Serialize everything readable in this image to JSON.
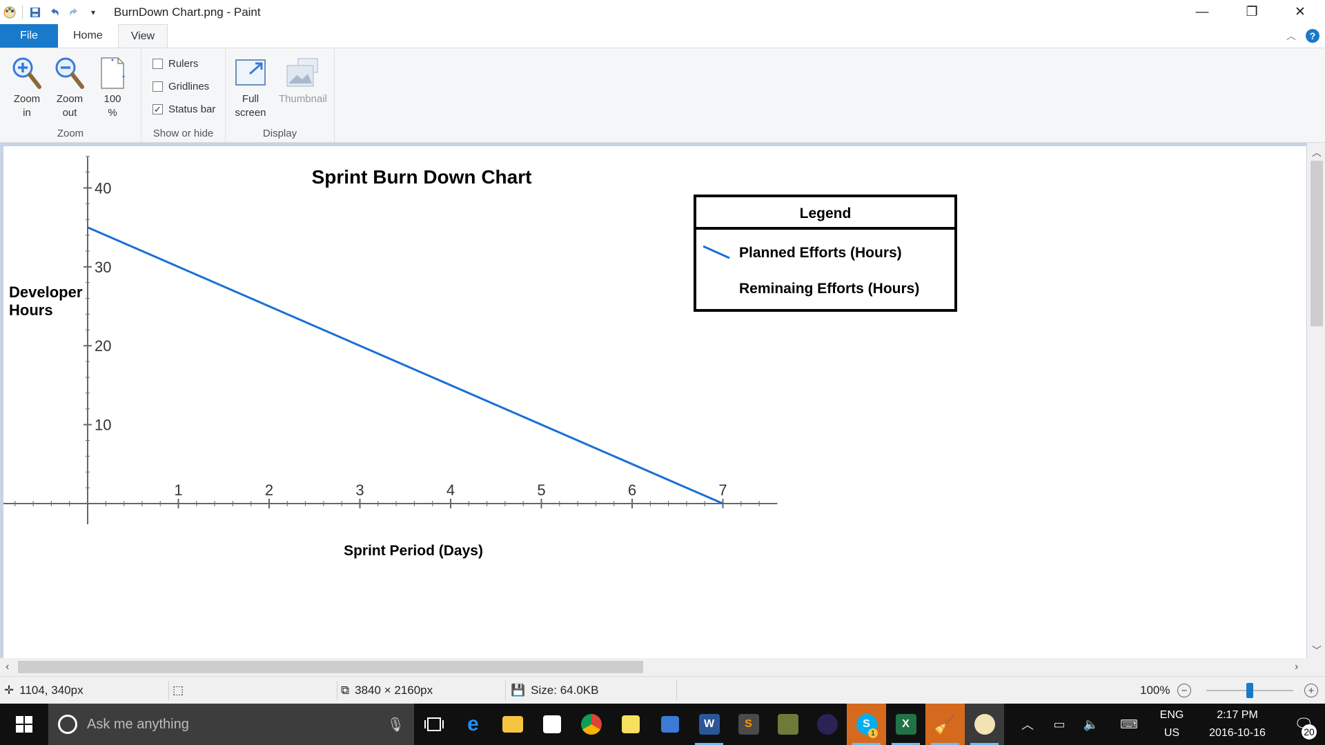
{
  "window": {
    "title": "BurnDown Chart.png - Paint",
    "minimize": "—",
    "restore": "❐",
    "close": "✕"
  },
  "tabs": [
    {
      "label": "File"
    },
    {
      "label": "Home"
    },
    {
      "label": "View"
    }
  ],
  "ribbon": {
    "zoom": {
      "zoom_in": "Zoom\nin",
      "zoom_out": "Zoom\nout",
      "hundred": "100\n%",
      "group_label": "Zoom"
    },
    "show_hide": {
      "rulers": "Rulers",
      "rulers_checked": false,
      "gridlines": "Gridlines",
      "gridlines_checked": false,
      "status_bar": "Status bar",
      "status_bar_checked": true,
      "group_label": "Show or hide"
    },
    "display": {
      "full_screen": "Full\nscreen",
      "thumbnail": "Thumbnail",
      "group_label": "Display"
    }
  },
  "image": {
    "title": "Sprint Burn Down Chart",
    "legend_title": "Legend",
    "legend_items": [
      {
        "label": "Planned Efforts (Hours)",
        "color": "#1a6fd6"
      },
      {
        "label": "Reminaing Efforts  (Hours)",
        "color": ""
      }
    ],
    "y_axis_label_line1": "Developer",
    "y_axis_label_line2": "Hours",
    "x_axis_label": "Sprint Period (Days)"
  },
  "chart_data": {
    "type": "line",
    "title": "Sprint Burn Down Chart",
    "xlabel": "Sprint Period (Days)",
    "ylabel": "Developer Hours",
    "x_ticks": [
      "1",
      "2",
      "3",
      "4",
      "5",
      "6",
      "7"
    ],
    "y_ticks": [
      "10",
      "20",
      "30",
      "40"
    ],
    "xlim": [
      0,
      7.6
    ],
    "ylim": [
      0,
      40
    ],
    "series": [
      {
        "name": "Planned Efforts (Hours)",
        "color": "#1a6fd6",
        "x": [
          0,
          7
        ],
        "y": [
          35,
          0
        ]
      }
    ],
    "legend_position": "top-right",
    "grid": false
  },
  "status": {
    "cursor_pos": "1104, 340px",
    "dimensions": "3840 × 2160px",
    "size": "Size: 64.0KB",
    "zoom": "100%"
  },
  "taskbar": {
    "search_placeholder": "Ask me anything",
    "lang_line1": "ENG",
    "lang_line2": "US",
    "time": "2:17 PM",
    "date": "2016-10-16",
    "notifications": "20",
    "skype_badge": "1"
  }
}
